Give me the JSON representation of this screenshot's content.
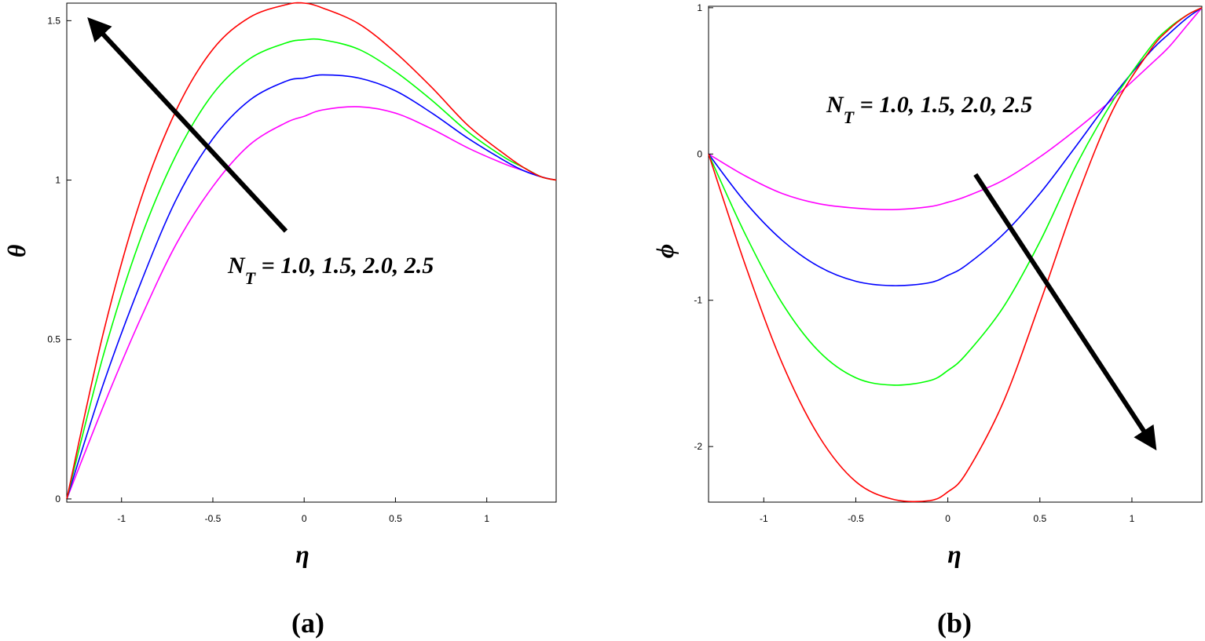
{
  "chart_data": [
    {
      "type": "line",
      "panel_label": "(a)",
      "xlabel": "η",
      "ylabel": "θ",
      "xlim": [
        -1.3,
        1.38
      ],
      "ylim": [
        -0.01,
        1.555
      ],
      "xticks": [
        -1,
        -0.5,
        0,
        0.5,
        1
      ],
      "yticks": [
        0,
        0.5,
        1,
        1.5
      ],
      "annotation": {
        "prefix": "N",
        "subscript": "T",
        "suffix": " = 1.0, 1.5, 2.0, 2.5",
        "arrow_from": [
          -0.1,
          0.84
        ],
        "arrow_to": [
          -1.17,
          1.5
        ]
      },
      "x": [
        -1.3,
        -1.1,
        -0.9,
        -0.7,
        -0.5,
        -0.3,
        -0.1,
        0.0,
        0.1,
        0.3,
        0.5,
        0.7,
        0.9,
        1.1,
        1.2,
        1.3,
        1.38
      ],
      "series": [
        {
          "name": "N_T = 1.0",
          "color": "#ff00ff",
          "values": [
            0.0,
            0.29,
            0.56,
            0.8,
            0.98,
            1.11,
            1.18,
            1.2,
            1.22,
            1.23,
            1.21,
            1.16,
            1.1,
            1.05,
            1.03,
            1.01,
            1.0
          ]
        },
        {
          "name": "N_T = 1.5",
          "color": "#0000ff",
          "values": [
            0.0,
            0.36,
            0.67,
            0.94,
            1.13,
            1.25,
            1.31,
            1.32,
            1.33,
            1.32,
            1.28,
            1.21,
            1.13,
            1.06,
            1.03,
            1.01,
            1.0
          ]
        },
        {
          "name": "N_T = 2.0",
          "color": "#00ff00",
          "values": [
            0.0,
            0.45,
            0.81,
            1.08,
            1.27,
            1.38,
            1.43,
            1.44,
            1.44,
            1.41,
            1.34,
            1.25,
            1.15,
            1.07,
            1.04,
            1.01,
            1.0
          ]
        },
        {
          "name": "N_T = 2.5",
          "color": "#ff0000",
          "values": [
            0.0,
            0.52,
            0.93,
            1.22,
            1.41,
            1.51,
            1.55,
            1.555,
            1.54,
            1.49,
            1.4,
            1.29,
            1.17,
            1.08,
            1.04,
            1.01,
            1.0
          ]
        }
      ]
    },
    {
      "type": "line",
      "panel_label": "(b)",
      "xlabel": "η",
      "ylabel": "ϕ",
      "xlim": [
        -1.3,
        1.38
      ],
      "ylim": [
        -2.38,
        1.01
      ],
      "xticks": [
        -1,
        -0.5,
        0,
        0.5,
        1
      ],
      "yticks": [
        -2,
        -1,
        0,
        1
      ],
      "annotation": {
        "prefix": "N",
        "subscript": "T",
        "suffix": " = 1.0, 1.5, 2.0, 2.5",
        "arrow_from": [
          0.15,
          -0.14
        ],
        "arrow_to": [
          1.12,
          -2.0
        ]
      },
      "x": [
        -1.3,
        -1.1,
        -0.9,
        -0.7,
        -0.5,
        -0.3,
        -0.1,
        0.0,
        0.1,
        0.3,
        0.5,
        0.7,
        0.9,
        1.1,
        1.2,
        1.3,
        1.38
      ],
      "series": [
        {
          "name": "N_T = 1.0",
          "color": "#ff00ff",
          "values": [
            0.0,
            -0.15,
            -0.27,
            -0.34,
            -0.37,
            -0.38,
            -0.36,
            -0.33,
            -0.29,
            -0.18,
            -0.02,
            0.17,
            0.38,
            0.61,
            0.73,
            0.88,
            1.0
          ]
        },
        {
          "name": "N_T = 1.5",
          "color": "#0000ff",
          "values": [
            0.0,
            -0.33,
            -0.59,
            -0.77,
            -0.87,
            -0.9,
            -0.88,
            -0.83,
            -0.76,
            -0.55,
            -0.27,
            0.06,
            0.4,
            0.7,
            0.82,
            0.93,
            1.0
          ]
        },
        {
          "name": "N_T = 2.0",
          "color": "#00ff00",
          "values": [
            0.0,
            -0.55,
            -1.02,
            -1.35,
            -1.53,
            -1.58,
            -1.55,
            -1.48,
            -1.37,
            -1.05,
            -0.6,
            -0.07,
            0.37,
            0.73,
            0.86,
            0.95,
            1.0
          ]
        },
        {
          "name": "N_T = 2.5",
          "color": "#ff0000",
          "values": [
            0.0,
            -0.76,
            -1.43,
            -1.93,
            -2.24,
            -2.36,
            -2.37,
            -2.31,
            -2.18,
            -1.7,
            -1.02,
            -0.3,
            0.31,
            0.71,
            0.85,
            0.95,
            1.0
          ]
        }
      ]
    }
  ]
}
